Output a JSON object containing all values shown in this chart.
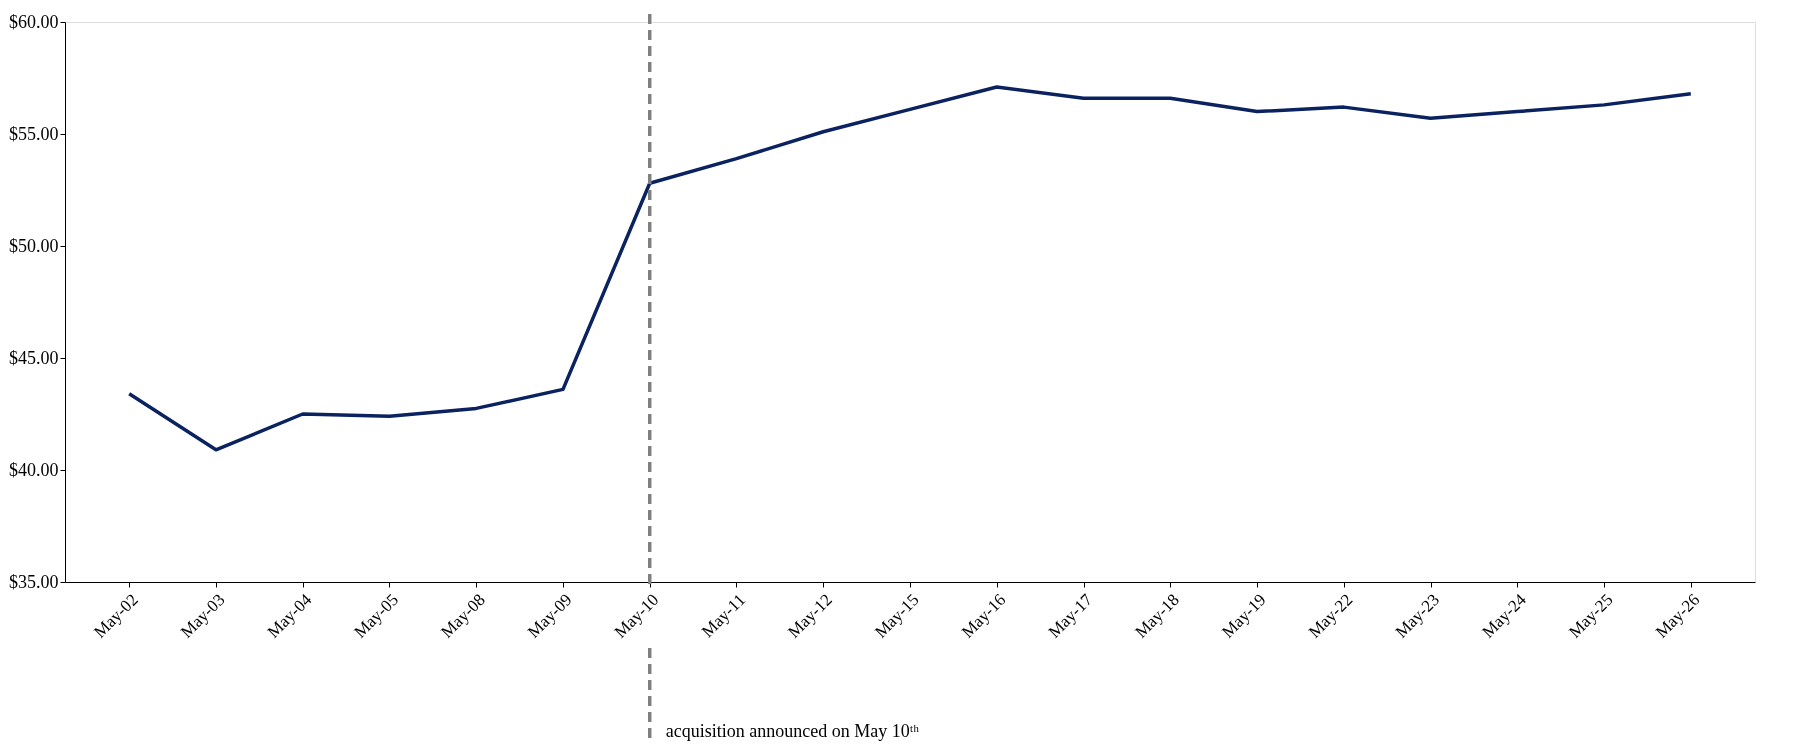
{
  "chart_data": {
    "type": "line",
    "categories": [
      "May-02",
      "May-03",
      "May-04",
      "May-05",
      "May-08",
      "May-09",
      "May-10",
      "May-11",
      "May-12",
      "May-15",
      "May-16",
      "May-17",
      "May-18",
      "May-19",
      "May-22",
      "May-23",
      "May-24",
      "May-25",
      "May-26"
    ],
    "series": [
      {
        "color": "#0b2260",
        "values": [
          43.4,
          40.9,
          42.5,
          42.4,
          42.75,
          43.6,
          52.8,
          53.9,
          55.1,
          56.1,
          57.1,
          56.6,
          56.6,
          56.0,
          56.2,
          55.7,
          56.0,
          56.3,
          56.8
        ]
      }
    ],
    "ylim": [
      35,
      60
    ],
    "yticks": [
      {
        "value": 35,
        "label": "$35.00"
      },
      {
        "value": 40,
        "label": "$40.00"
      },
      {
        "value": 45,
        "label": "$45.00"
      },
      {
        "value": 50,
        "label": "$50.00"
      },
      {
        "value": 55,
        "label": "$55.00"
      },
      {
        "value": 60,
        "label": "$60.00"
      }
    ],
    "ref_lines": [
      {
        "axis": "x",
        "value": "May-10",
        "color": "#808080",
        "line_style": "dashed"
      }
    ],
    "annotations": [
      "acquisition announced on May 10ᵗʰ"
    ],
    "grid": false,
    "marker": "none",
    "line_style": "solid"
  }
}
